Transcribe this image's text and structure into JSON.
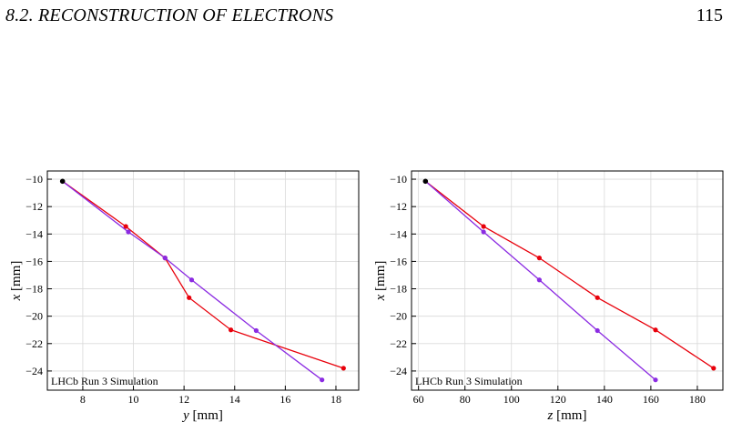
{
  "header": {
    "section": "8.2.",
    "title": "RECONSTRUCTION OF ELECTRONS",
    "page_number": "115"
  },
  "chart_data": [
    {
      "type": "line",
      "xlabel_var": "y",
      "xlabel_unit": "[mm]",
      "ylabel_var": "x",
      "ylabel_unit": "[mm]",
      "xlim": [
        6.6,
        18.9
      ],
      "ylim": [
        -25.4,
        -9.4
      ],
      "xticks": [
        8,
        10,
        12,
        14,
        16,
        18
      ],
      "yticks": [
        -10,
        -12,
        -14,
        -16,
        -18,
        -20,
        -22,
        -24
      ],
      "grid": true,
      "annotation": "LHCb Run 3 Simulation",
      "start_point": {
        "x": 7.2,
        "y": -10.15,
        "color": "#000000"
      },
      "series": [
        {
          "color": "#e8000b",
          "x": [
            7.2,
            9.7,
            11.25,
            12.2,
            13.85,
            18.3
          ],
          "y": [
            -10.15,
            -13.45,
            -15.75,
            -18.65,
            -21.0,
            -23.8
          ]
        },
        {
          "color": "#8b2be2",
          "x": [
            7.2,
            9.8,
            11.25,
            12.3,
            14.85,
            17.45
          ],
          "y": [
            -10.15,
            -13.85,
            -15.75,
            -17.35,
            -21.05,
            -24.65
          ]
        }
      ]
    },
    {
      "type": "line",
      "xlabel_var": "z",
      "xlabel_unit": "[mm]",
      "ylabel_var": "x",
      "ylabel_unit": "[mm]",
      "xlim": [
        57,
        191
      ],
      "ylim": [
        -25.4,
        -9.4
      ],
      "xticks": [
        60,
        80,
        100,
        120,
        140,
        160,
        180
      ],
      "yticks": [
        -10,
        -12,
        -14,
        -16,
        -18,
        -20,
        -22,
        -24
      ],
      "grid": true,
      "annotation": "LHCb Run 3 Simulation",
      "start_point": {
        "x": 63,
        "y": -10.15,
        "color": "#000000"
      },
      "series": [
        {
          "color": "#e8000b",
          "x": [
            63,
            88,
            112,
            137,
            162,
            187
          ],
          "y": [
            -10.15,
            -13.45,
            -15.75,
            -18.65,
            -21.0,
            -23.8
          ]
        },
        {
          "color": "#8b2be2",
          "x": [
            63,
            88,
            112,
            137,
            162
          ],
          "y": [
            -10.15,
            -13.85,
            -17.35,
            -21.05,
            -24.65
          ]
        }
      ]
    }
  ]
}
